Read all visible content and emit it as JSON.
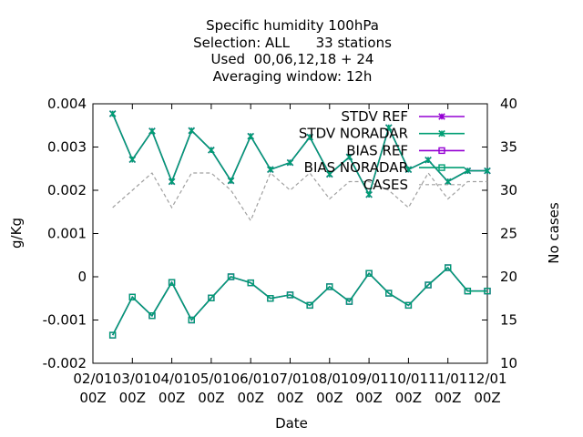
{
  "chart_data": {
    "type": "line",
    "title": [
      "Specific humidity 100hPa",
      "Selection: ALL      33 stations",
      "Used  00,06,12,18 + 24",
      "Averaging window: 12h"
    ],
    "xlabel": "Date",
    "ylabel": "g/Kg",
    "y2label": "No cases",
    "ylim": [
      -0.002,
      0.004
    ],
    "y2lim": [
      10,
      40
    ],
    "x_domain": [
      0,
      10
    ],
    "grid": false,
    "legend_position": "top-right",
    "y_ticks": [
      "0.004",
      "0.003",
      "0.002",
      "0.001",
      "0",
      "-0.001",
      "-0.002"
    ],
    "y2_ticks": [
      "40",
      "35",
      "30",
      "25",
      "20",
      "15",
      "10"
    ],
    "x_ticks": [
      {
        "line1": "02/01",
        "line2": "00Z"
      },
      {
        "line1": "03/01",
        "line2": "00Z"
      },
      {
        "line1": "04/01",
        "line2": "00Z"
      },
      {
        "line1": "05/01",
        "line2": "00Z"
      },
      {
        "line1": "06/01",
        "line2": "00Z"
      },
      {
        "line1": "07/01",
        "line2": "00Z"
      },
      {
        "line1": "08/01",
        "line2": "00Z"
      },
      {
        "line1": "09/01",
        "line2": "00Z"
      },
      {
        "line1": "10/01",
        "line2": "00Z"
      },
      {
        "line1": "11/01",
        "line2": "00Z"
      },
      {
        "line1": "12/01",
        "line2": "00Z"
      }
    ],
    "x": [
      0.5,
      1.0,
      1.5,
      2.0,
      2.5,
      3.0,
      3.5,
      4.0,
      4.5,
      5.0,
      5.5,
      6.0,
      6.5,
      7.0,
      7.5,
      8.0,
      8.5,
      9.0,
      9.5,
      10.0
    ],
    "series": [
      {
        "name": "STDV REF",
        "axis": "y1",
        "color": "#9400d3",
        "marker": "x",
        "dash": "",
        "values": [
          0.00377,
          0.00271,
          0.00337,
          0.0022,
          0.00338,
          0.00293,
          0.00222,
          0.00325,
          0.00248,
          0.00264,
          0.00323,
          0.00237,
          0.00277,
          0.0019,
          0.00345,
          0.00248,
          0.0027,
          0.0022,
          0.00245,
          0.00245
        ]
      },
      {
        "name": "STDV NORADAR",
        "axis": "y1",
        "color": "#009e73",
        "marker": "x",
        "dash": "",
        "values": [
          0.00377,
          0.00271,
          0.00337,
          0.0022,
          0.00338,
          0.00293,
          0.00222,
          0.00325,
          0.00248,
          0.00264,
          0.00323,
          0.00237,
          0.00277,
          0.0019,
          0.00345,
          0.00248,
          0.0027,
          0.0022,
          0.00245,
          0.00245
        ]
      },
      {
        "name": "BIAS REF",
        "axis": "y1",
        "color": "#9400d3",
        "marker": "square",
        "dash": "",
        "values": [
          -0.00135,
          -0.00047,
          -0.0009,
          -0.00013,
          -0.001,
          -0.00049,
          0.0,
          -0.00014,
          -0.0005,
          -0.00042,
          -0.00066,
          -0.00023,
          -0.00057,
          8e-05,
          -0.00038,
          -0.00066,
          -0.00019,
          0.00021,
          -0.00033,
          -0.00033
        ]
      },
      {
        "name": "BIAS NORADAR",
        "axis": "y1",
        "color": "#009e73",
        "marker": "square",
        "dash": "",
        "values": [
          -0.00135,
          -0.00047,
          -0.0009,
          -0.00013,
          -0.001,
          -0.00049,
          0.0,
          -0.00014,
          -0.0005,
          -0.00042,
          -0.00066,
          -0.00023,
          -0.00057,
          8e-05,
          -0.00038,
          -0.00066,
          -0.00019,
          0.00021,
          -0.00033,
          -0.00033
        ]
      },
      {
        "name": "CASES",
        "axis": "y2",
        "color": "#a0a0a0",
        "marker": "none",
        "dash": "4,3",
        "values": [
          28.0,
          30.0,
          32.0,
          28.0,
          32.0,
          32.0,
          30.0,
          26.5,
          32.0,
          30.0,
          32.0,
          29.0,
          31.0,
          31.0,
          30.0,
          28.0,
          32.0,
          29.0,
          31.0,
          31.0
        ]
      }
    ]
  }
}
